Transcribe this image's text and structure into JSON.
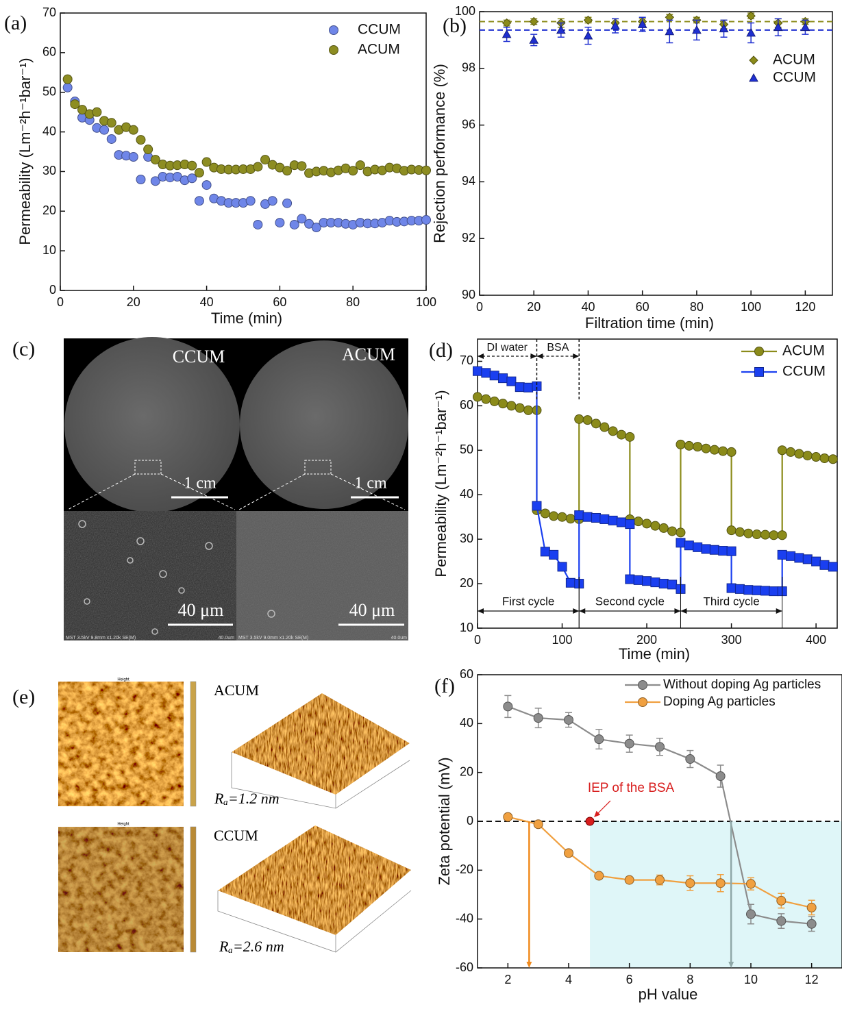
{
  "chart_data": [
    {
      "type": "scatter",
      "panel": "(a)",
      "xlabel": "Time (min)",
      "ylabel": "Permeability (Lm⁻²h⁻¹bar⁻¹)",
      "xlim": [
        0,
        100
      ],
      "ylim": [
        0,
        70
      ],
      "xticks": [
        0,
        20,
        40,
        60,
        80,
        100
      ],
      "yticks": [
        0,
        10,
        20,
        30,
        40,
        50,
        60,
        70
      ],
      "legend": "upper right",
      "x": [
        2,
        4,
        6,
        8,
        10,
        12,
        14,
        16,
        18,
        20,
        22,
        24,
        26,
        28,
        30,
        32,
        34,
        36,
        38,
        40,
        42,
        44,
        46,
        48,
        50,
        52,
        54,
        56,
        58,
        60,
        62,
        64,
        66,
        68,
        70,
        72,
        74,
        76,
        78,
        80,
        82,
        84,
        86,
        88,
        90,
        92,
        94,
        96,
        98,
        100
      ],
      "series": [
        {
          "name": "CCUM",
          "color": "#6f86e8",
          "marker": "circle",
          "values": [
            51.2,
            47.7,
            43.6,
            43.0,
            41.0,
            40.5,
            38.2,
            34.2,
            34.0,
            33.7,
            28.0,
            33.7,
            27.6,
            28.7,
            28.5,
            28.7,
            27.8,
            28.3,
            22.6,
            26.6,
            23.2,
            22.6,
            22.1,
            22.1,
            22.1,
            22.6,
            16.6,
            21.8,
            22.6,
            17.1,
            22.0,
            16.6,
            18.1,
            16.8,
            15.9,
            17.1,
            17.1,
            17.1,
            16.8,
            16.6,
            17.1,
            16.9,
            16.9,
            17.1,
            17.6,
            17.3,
            17.4,
            17.6,
            17.6,
            17.8
          ]
        },
        {
          "name": "ACUM",
          "color": "#8d8d22",
          "marker": "circle",
          "values": [
            53.3,
            47.0,
            45.6,
            44.5,
            45.0,
            42.8,
            42.3,
            40.5,
            41.2,
            40.5,
            38.0,
            35.6,
            33.0,
            31.8,
            31.5,
            31.6,
            31.8,
            31.5,
            29.7,
            32.4,
            31.0,
            30.6,
            30.5,
            30.5,
            30.6,
            30.6,
            31.2,
            33.0,
            31.7,
            31.0,
            30.2,
            31.6,
            31.4,
            29.6,
            30.0,
            30.2,
            29.8,
            30.3,
            30.8,
            30.2,
            31.6,
            30.0,
            30.5,
            30.3,
            31.0,
            30.8,
            30.2,
            30.5,
            30.4,
            30.3
          ]
        }
      ]
    },
    {
      "type": "scatter",
      "panel": "(b)",
      "xlabel": "Filtration time (min)",
      "ylabel": "Rejection performance (%)",
      "xlim": [
        0,
        130
      ],
      "ylim": [
        90,
        100
      ],
      "xticks": [
        0,
        20,
        40,
        60,
        80,
        100,
        120
      ],
      "yticks": [
        90,
        92,
        94,
        96,
        98,
        100
      ],
      "legend": "upper right",
      "x": [
        10,
        20,
        30,
        40,
        50,
        60,
        70,
        80,
        90,
        100,
        110,
        120
      ],
      "series": [
        {
          "name": "ACUM",
          "color": "#8b8b1a",
          "marker": "diamond",
          "hline": 99.65,
          "values": [
            99.6,
            99.65,
            99.6,
            99.7,
            99.6,
            99.65,
            99.8,
            99.7,
            99.55,
            99.85,
            99.6,
            99.65
          ],
          "errors": [
            0.1,
            0.1,
            0.15,
            0.1,
            0.15,
            0.1,
            0.1,
            0.1,
            0.15,
            0.1,
            0.15,
            0.1
          ]
        },
        {
          "name": "CCUM",
          "color": "#1f2fd0",
          "marker": "triangle",
          "hline": 99.35,
          "values": [
            99.2,
            99.0,
            99.35,
            99.15,
            99.5,
            99.55,
            99.3,
            99.35,
            99.4,
            99.25,
            99.45,
            99.45
          ],
          "errors": [
            0.25,
            0.2,
            0.25,
            0.3,
            0.25,
            0.25,
            0.4,
            0.35,
            0.3,
            0.35,
            0.3,
            0.25
          ]
        }
      ]
    },
    {
      "type": "line",
      "panel": "(d)",
      "xlabel": "Time (min)",
      "ylabel": "Permeability (Lm⁻²h⁻¹bar⁻¹)",
      "xlim": [
        0,
        425
      ],
      "ylim": [
        10,
        75
      ],
      "xticks": [
        0,
        100,
        200,
        300,
        400
      ],
      "yticks": [
        10,
        20,
        30,
        40,
        50,
        60,
        70
      ],
      "legend": "upper right",
      "x": [
        0,
        10,
        20,
        30,
        40,
        50,
        60,
        70,
        70,
        80,
        90,
        100,
        110,
        120,
        120,
        130,
        140,
        150,
        160,
        170,
        180,
        180,
        190,
        200,
        210,
        220,
        230,
        240,
        240,
        250,
        260,
        270,
        280,
        290,
        300,
        300,
        310,
        320,
        330,
        340,
        350,
        360,
        360,
        370,
        380,
        390,
        400,
        410,
        420
      ],
      "series": [
        {
          "name": "ACUM",
          "color": "#8b8b1a",
          "marker": "circle",
          "values": [
            62,
            61.5,
            61,
            60.5,
            60,
            59.5,
            59,
            59,
            36.5,
            35.8,
            35.2,
            35,
            34.6,
            34.5,
            57,
            56.8,
            56,
            55.2,
            54.3,
            53.5,
            53,
            34.5,
            34,
            33.5,
            33,
            32.5,
            31.8,
            31.5,
            51.3,
            51,
            50.8,
            50.4,
            50.1,
            49.8,
            49.6,
            32,
            31.6,
            31.3,
            31.1,
            31,
            30.9,
            30.9,
            50,
            49.6,
            49.2,
            48.8,
            48.5,
            48.2,
            48
          ]
        },
        {
          "name": "CCUM",
          "color": "#1a3ff0",
          "marker": "square",
          "values": [
            67.8,
            67.4,
            66.8,
            66.2,
            65.5,
            64.2,
            64.1,
            64.4,
            37.5,
            27.2,
            26.5,
            23.8,
            20.2,
            20,
            35.4,
            35,
            34.8,
            34.5,
            34.2,
            33.8,
            33.4,
            21,
            20.8,
            20.6,
            20.3,
            20,
            19.8,
            18.8,
            29.2,
            28.6,
            28.2,
            27.8,
            27.6,
            27.4,
            27.3,
            19,
            18.8,
            18.6,
            18.5,
            18.4,
            18.3,
            18.3,
            26.5,
            26.2,
            25.8,
            25.5,
            25,
            24.2,
            23.8
          ]
        }
      ],
      "phases": [
        {
          "text": "DI water",
          "from": 0,
          "to": 70
        },
        {
          "text": "BSA",
          "from": 70,
          "to": 120
        }
      ],
      "cycles": [
        {
          "text": "First cycle",
          "from": 0,
          "to": 120
        },
        {
          "text": "Second cycle",
          "from": 120,
          "to": 240
        },
        {
          "text": "Third cycle",
          "from": 240,
          "to": 360
        }
      ]
    },
    {
      "type": "line",
      "panel": "(f)",
      "xlabel": "pH value",
      "ylabel": "Zeta potential (mV)",
      "xlim": [
        1,
        13
      ],
      "ylim": [
        -60,
        60
      ],
      "xticks": [
        2,
        4,
        6,
        8,
        10,
        12
      ],
      "yticks": [
        -60,
        -40,
        -20,
        0,
        20,
        40,
        60
      ],
      "legend": "upper right",
      "x": [
        2,
        3,
        4,
        5,
        6,
        7,
        8,
        9,
        10,
        11,
        12
      ],
      "hline": 0,
      "shade": {
        "from": 4.7,
        "to": 13,
        "y": [
          -60,
          0
        ],
        "color": "#dff6f8"
      },
      "series": [
        {
          "name": "Without doping Ag particles",
          "color": "#8c8c8c",
          "marker": "circle",
          "values": [
            47,
            42.3,
            41.5,
            33.6,
            31.8,
            30.5,
            25.5,
            18.5,
            -38,
            -40.8,
            -42
          ],
          "errors": [
            4.5,
            4,
            3,
            4,
            3.5,
            3.5,
            3.5,
            4.5,
            4,
            3,
            3
          ]
        },
        {
          "name": "Doping Ag particles",
          "color": "#f0a040",
          "marker": "circle",
          "values": [
            1.8,
            -1.2,
            -13,
            -22.3,
            -24,
            -24,
            -25.3,
            -25.3,
            -25.6,
            -32.5,
            -35.3
          ],
          "errors": [
            0,
            0,
            0,
            1,
            0,
            2,
            3,
            3.5,
            2.5,
            3,
            3
          ]
        }
      ],
      "arrows": [
        {
          "x": 2.7,
          "from": 0,
          "to": -60,
          "color": "#f08a1e"
        },
        {
          "x": 9.35,
          "from": 0,
          "to": -60,
          "color": "#8fa8a8"
        }
      ],
      "iep": {
        "text": "IEP of the BSA",
        "x": 4.7,
        "y": 0,
        "color": "#d81e1e"
      }
    }
  ],
  "figure_panels": {
    "c": {
      "panel": "(c)",
      "samples": [
        "CCUM",
        "ACUM"
      ],
      "photo_scale": [
        "1 cm",
        "1 cm"
      ],
      "sem_scale": [
        "40 μm",
        "40 μm"
      ],
      "sem_info": [
        "MST 3.5kV 9.8mm x1.20k SE(M)",
        "MST 3.5kV 9.0mm x1.20k SE(M)"
      ],
      "sem_ruler": [
        "40.0um",
        "40.0um"
      ]
    },
    "e": {
      "panel": "(e)",
      "map_title": [
        "Height",
        "Height"
      ],
      "samples": [
        "ACUM",
        "CCUM"
      ],
      "roughness": [
        "Rₐ=1.2 nm",
        "Rₐ=2.6 nm"
      ]
    }
  }
}
